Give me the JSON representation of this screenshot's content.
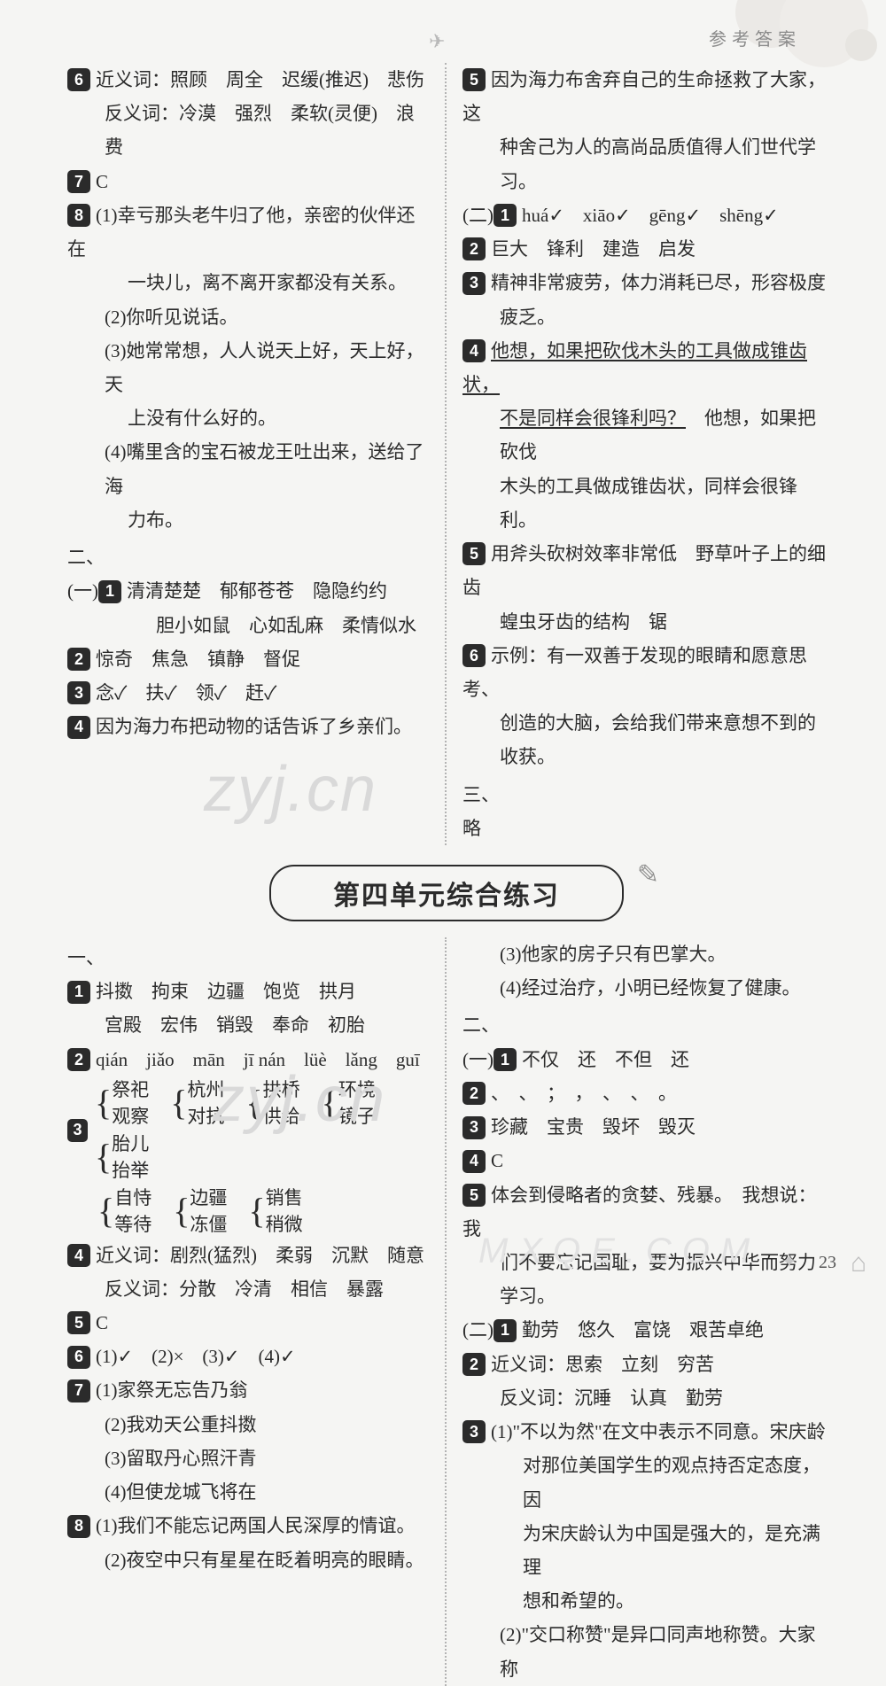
{
  "header": {
    "title": "参考答案",
    "plane_glyph": "✈"
  },
  "top": {
    "left": {
      "q6_label": "6",
      "q6_l1": "近义词：照顾　周全　迟缓(推迟)　悲伤",
      "q6_l2": "反义词：冷漠　强烈　柔软(灵便)　浪费",
      "q7_label": "7",
      "q7": "C",
      "q8_label": "8",
      "q8_1a": "(1)幸亏那头老牛归了他，亲密的伙伴还在",
      "q8_1b": "一块儿，离不离开家都没有关系。",
      "q8_2": "(2)你听见说话。",
      "q8_3a": "(3)她常常想，人人说天上好，天上好，天",
      "q8_3b": "上没有什么好的。",
      "q8_4a": "(4)嘴里含的宝石被龙王吐出来，送给了海",
      "q8_4b": "力布。",
      "sec2": "二、",
      "p1_label": "1",
      "p1_prefix": "(一)",
      "p1_l1": "清清楚楚　郁郁苍苍　隐隐约约",
      "p1_l2": "胆小如鼠　心如乱麻　柔情似水",
      "p2_label": "2",
      "p2": "惊奇　焦急　镇静　督促",
      "p3_label": "3",
      "p3": "念✓　扶✓　领✓　赶✓",
      "p4_label": "4",
      "p4": "因为海力布把动物的话告诉了乡亲们。"
    },
    "right": {
      "q5_label": "5",
      "q5_l1": "因为海力布舍弃自己的生命拯救了大家，这",
      "q5_l2": "种舍己为人的高尚品质值得人们世代学习。",
      "p2_prefix": "(二)",
      "r1_label": "1",
      "r1": "huá✓　xiāo✓　gēng✓　shēng✓",
      "r2_label": "2",
      "r2": "巨大　锋利　建造　启发",
      "r3_label": "3",
      "r3_l1": "精神非常疲劳，体力消耗已尽，形容极度",
      "r3_l2": "疲乏。",
      "r4_label": "4",
      "r4_u1": "他想，如果把砍伐木头的工具做成锥齿状，",
      "r4_u2": "不是同样会很锋利吗？",
      "r4_b1": "　他想，如果把砍伐",
      "r4_b2": "木头的工具做成锥齿状，同样会很锋利。",
      "r5_label": "5",
      "r5_l1": "用斧头砍树效率非常低　野草叶子上的细齿",
      "r5_l2": "蝗虫牙齿的结构　锯",
      "r6_label": "6",
      "r6_l1": "示例：有一双善于发现的眼睛和愿意思考、",
      "r6_l2": "创造的大脑，会给我们带来意想不到的",
      "r6_l3": "收获。",
      "sec3": "三、",
      "sec3v": "略"
    }
  },
  "banner": {
    "title": "第四单元综合练习"
  },
  "bottom": {
    "left": {
      "sec1": "一、",
      "b1_label": "1",
      "b1_l1": "抖擞　拘束　边疆　饱览　拱月",
      "b1_l2": "宫殿　宏伟　销毁　奉命　初胎",
      "b2_label": "2",
      "b2": "qián　jiǎo　mān　jī nán　lüè　lǎng　guī",
      "b3_label": "3",
      "b3_pairs": [
        [
          "祭祀",
          "观察"
        ],
        [
          "杭州",
          "对抗"
        ],
        [
          "拱桥",
          "供给"
        ],
        [
          "环境",
          "镜子"
        ],
        [
          "胎儿",
          "抬举"
        ]
      ],
      "b3_pairs2": [
        [
          "自恃",
          "等待"
        ],
        [
          "边疆",
          "冻僵"
        ],
        [
          "销售",
          "稍微"
        ]
      ],
      "b4_label": "4",
      "b4_l1": "近义词：剧烈(猛烈)　柔弱　沉默　随意",
      "b4_l2": "反义词：分散　冷清　相信　暴露",
      "b5_label": "5",
      "b5": "C",
      "b6_label": "6",
      "b6": "(1)✓　(2)×　(3)✓　(4)✓",
      "b7_label": "7",
      "b7_1": "(1)家祭无忘告乃翁",
      "b7_2": "(2)我劝天公重抖擞",
      "b7_3": "(3)留取丹心照汗青",
      "b7_4": "(4)但使龙城飞将在",
      "b8_label": "8",
      "b8_1": "(1)我们不能忘记两国人民深厚的情谊。",
      "b8_2": "(2)夜空中只有星星在眨着明亮的眼睛。"
    },
    "right": {
      "c3": "(3)他家的房子只有巴掌大。",
      "c4": "(4)经过治疗，小明已经恢复了健康。",
      "sec2": "二、",
      "r1_prefix": "(一)",
      "r1_label": "1",
      "r1": "不仅　还　不但　还",
      "r2_label": "2",
      "r2": "、　、　；　，　、　、　。",
      "r3_label": "3",
      "r3": "珍藏　宝贵　毁坏　毁灭",
      "r4_label": "4",
      "r4": "C",
      "r5_label": "5",
      "r5_l1": "体会到侵略者的贪婪、残暴。　我想说：我",
      "r5_l2": "们不要忘记国耻，要为振兴中华而努力",
      "r5_l3": "学习。",
      "r2_prefix": "(二)",
      "s1_label": "1",
      "s1": "勤劳　悠久　富饶　艰苦卓绝",
      "s2_label": "2",
      "s2_l1": "近义词：思索　立刻　穷苦",
      "s2_l2": "反义词：沉睡　认真　勤劳",
      "s3_label": "3",
      "s3_1a": "(1)\"不以为然\"在文中表示不同意。宋庆龄",
      "s3_1b": "对那位美国学生的观点持否定态度，因",
      "s3_1c": "为宋庆龄认为中国是强大的，是充满理",
      "s3_1d": "想和希望的。",
      "s3_2a": "(2)\"交口称赞\"是异口同声地称赞。大家称"
    }
  },
  "watermarks": {
    "wm1": "zyj.cn",
    "wm2": "zyj.cn",
    "wm3": "MXQE.COM"
  },
  "page_number": "23"
}
